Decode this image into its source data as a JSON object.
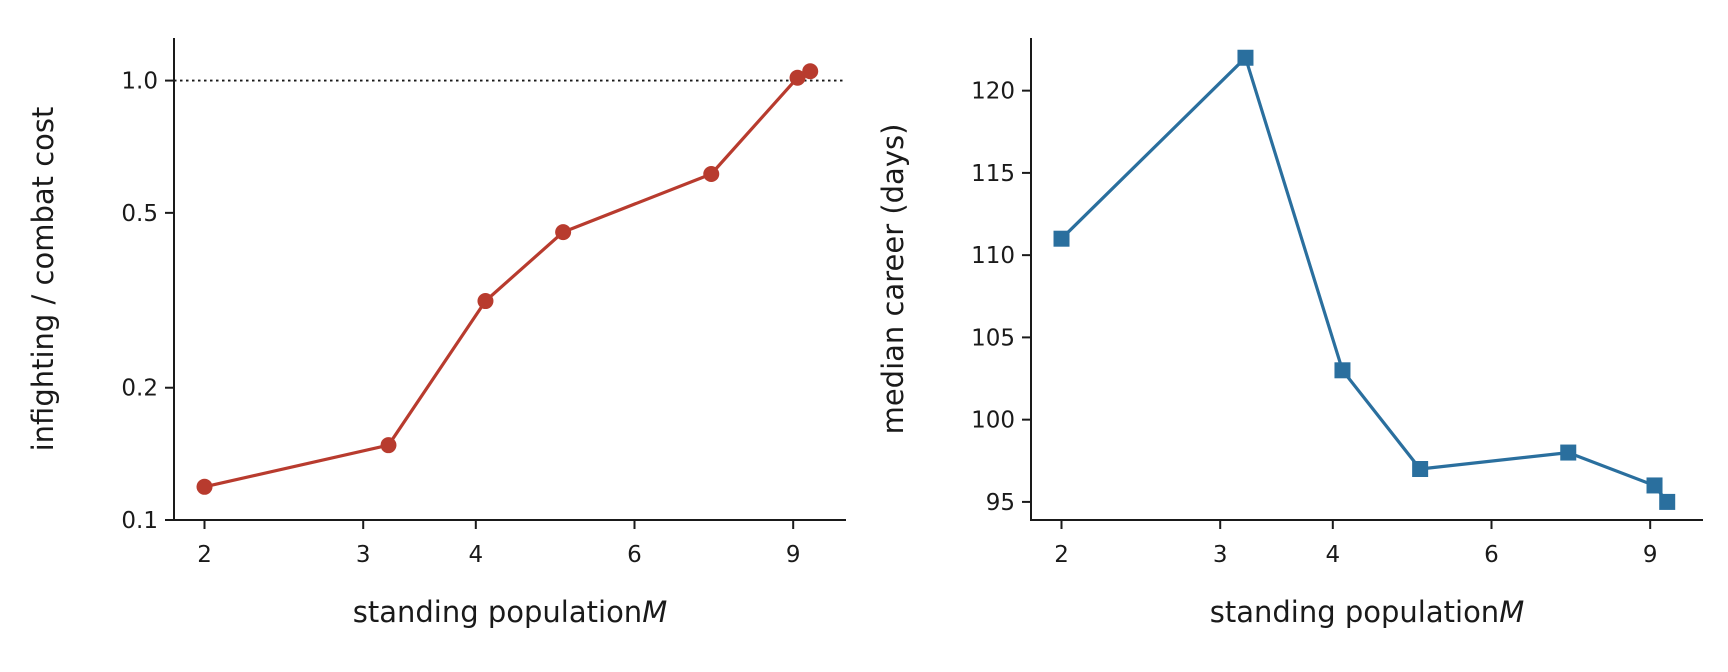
{
  "chart_data": [
    {
      "type": "line",
      "xlabel": "standing population",
      "xlabel_var": "M",
      "ylabel": "infighting / combat cost",
      "x_scale": "log",
      "y_scale": "log",
      "xlim": [
        1.85,
        10.3
      ],
      "ylim": [
        0.1,
        1.25
      ],
      "x_ticks": [
        2,
        3,
        4,
        6,
        9
      ],
      "x_tick_labels": [
        "2",
        "3",
        "4",
        "6",
        "9"
      ],
      "y_ticks": [
        0.1,
        0.2,
        0.5,
        1.0
      ],
      "y_tick_labels": [
        "0.1",
        "0.2",
        "0.5",
        "1.0"
      ],
      "reference_line": {
        "y": 1.0,
        "style": "dotted"
      },
      "series": [
        {
          "color": "#b83b2e",
          "marker": "circle",
          "x": [
            2.0,
            3.2,
            4.1,
            5.0,
            7.3,
            9.1,
            9.4
          ],
          "y": [
            0.119,
            0.148,
            0.315,
            0.452,
            0.613,
            1.015,
            1.05
          ]
        }
      ]
    },
    {
      "type": "line",
      "xlabel": "standing population",
      "xlabel_var": "M",
      "ylabel": "median career (days)",
      "x_scale": "log",
      "y_scale": "linear",
      "xlim": [
        1.85,
        10.3
      ],
      "ylim": [
        93.9,
        123.2
      ],
      "x_ticks": [
        2,
        3,
        4,
        6,
        9
      ],
      "x_tick_labels": [
        "2",
        "3",
        "4",
        "6",
        "9"
      ],
      "y_ticks": [
        95,
        100,
        105,
        110,
        115,
        120
      ],
      "y_tick_labels": [
        "95",
        "100",
        "105",
        "110",
        "115",
        "120"
      ],
      "series": [
        {
          "color": "#2a6f9e",
          "marker": "square",
          "x": [
            2.0,
            3.2,
            4.1,
            5.0,
            7.3,
            9.1,
            9.4
          ],
          "y": [
            111,
            122,
            103,
            97,
            98,
            96,
            95
          ]
        }
      ]
    }
  ]
}
